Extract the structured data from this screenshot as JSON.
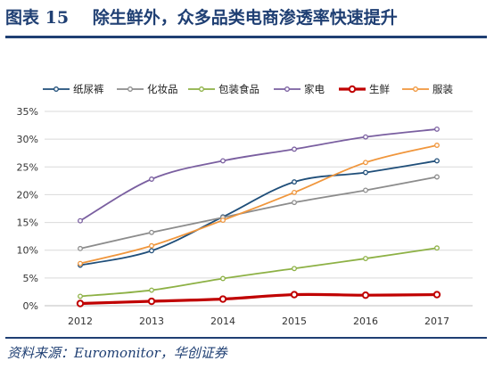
{
  "header": {
    "figure_label": "图表 15",
    "title_text": "除生鲜外，众多品类电商渗透率快速提升"
  },
  "footer": {
    "source": "资料来源：Euromonitor，华创证券"
  },
  "chart_data": {
    "type": "line",
    "title": "",
    "xlabel": "",
    "ylabel": "",
    "categories": [
      "2012",
      "2013",
      "2014",
      "2015",
      "2016",
      "2017"
    ],
    "ylim": [
      0,
      35
    ],
    "yticks": [
      "0%",
      "5%",
      "10%",
      "15%",
      "20%",
      "25%",
      "30%",
      "35%"
    ],
    "ytick_values": [
      0,
      5,
      10,
      15,
      20,
      25,
      30,
      35
    ],
    "value_unit": "%",
    "grid": true,
    "legend_position": "top",
    "series": [
      {
        "name": "纸尿裤",
        "color": "#1f4e79",
        "values": [
          7.3,
          9.9,
          16.0,
          22.3,
          24.0,
          26.1
        ]
      },
      {
        "name": "化妆品",
        "color": "#8c8c8c",
        "values": [
          10.3,
          13.2,
          15.9,
          18.6,
          20.8,
          23.2
        ]
      },
      {
        "name": "包装食品",
        "color": "#8db145",
        "values": [
          1.7,
          2.8,
          4.9,
          6.7,
          8.5,
          10.4
        ]
      },
      {
        "name": "家电",
        "color": "#7a5fa0",
        "values": [
          15.3,
          22.8,
          26.1,
          28.2,
          30.4,
          31.8
        ]
      },
      {
        "name": "生鲜",
        "color": "#c00000",
        "values": [
          0.4,
          0.8,
          1.2,
          2.0,
          1.9,
          2.0
        ]
      },
      {
        "name": "服装",
        "color": "#f0963c",
        "values": [
          7.6,
          10.8,
          15.4,
          20.4,
          25.8,
          28.9
        ]
      }
    ]
  }
}
